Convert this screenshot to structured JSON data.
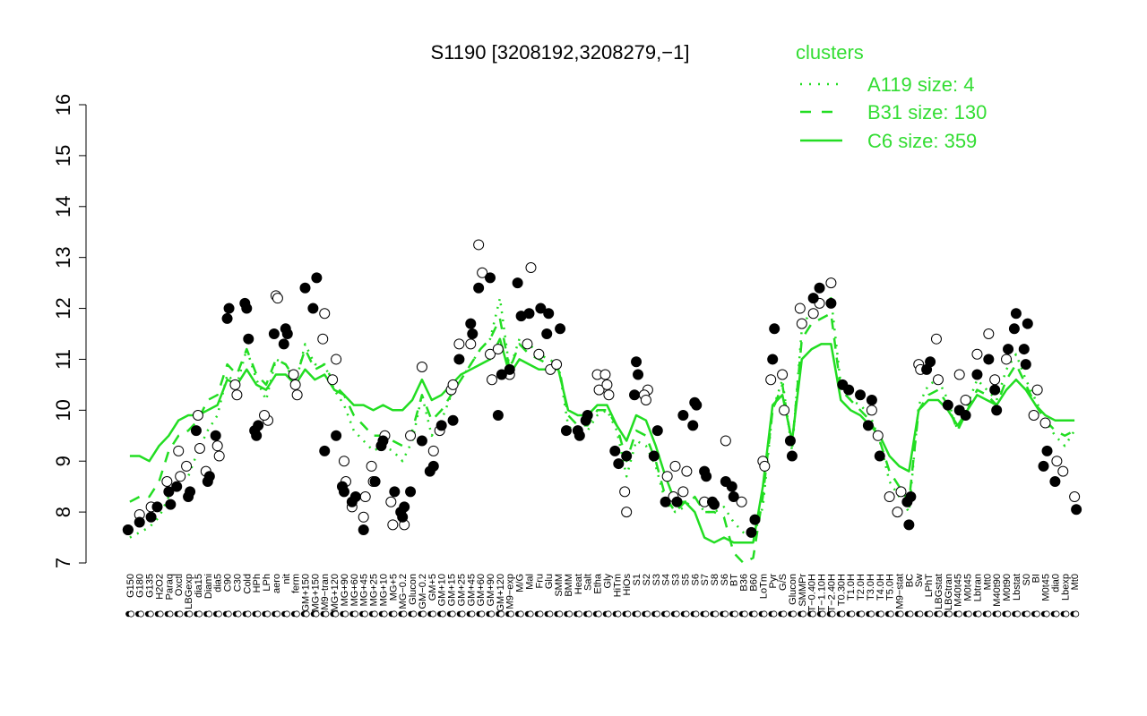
{
  "chart_data": {
    "type": "line",
    "title": "S1190 [3208192,3208279,−1]",
    "xlabel": "",
    "ylabel": "",
    "ylim": [
      7,
      16
    ],
    "yticks": [
      "7",
      "8",
      "9",
      "10",
      "11",
      "12",
      "13",
      "14",
      "15",
      "16"
    ],
    "grid": false,
    "legend_placement": "top-right",
    "legend": {
      "title": "clusters",
      "entries": [
        {
          "label": "A119 size: 4",
          "style": "dotted"
        },
        {
          "label": "B31 size: 130",
          "style": "dashed"
        },
        {
          "label": "C6 size: 359",
          "style": "solid"
        }
      ]
    },
    "colors": {
      "line": "#22dd22",
      "legend": "#33dd33",
      "axis": "#000000"
    },
    "x_labels": [
      "G150",
      "G180",
      "G135",
      "H2O2",
      "Paraq",
      "Oxctl",
      "LBGexp",
      "dia15",
      "Diami",
      "dia5",
      "C90",
      "C30",
      "Cold",
      "HPh",
      "LPh",
      "aero",
      "nit",
      "ferm",
      "GM+150",
      "MG+150",
      "M9−tran",
      "MG+120",
      "MG+90",
      "MG+60",
      "MG+45",
      "MG+25",
      "MG+10",
      "MG+5",
      "MG−0.2",
      "Glucon",
      "GM−0.2",
      "GM+5",
      "GM+10",
      "GM+15",
      "GM+25",
      "GM+45",
      "GM+60",
      "GM+90",
      "GM+120",
      "M9−exp",
      "M/G",
      "Mal",
      "Fru",
      "Glu",
      "SMM",
      "BMM",
      "Heat",
      "Salt",
      "Etha",
      "Gly",
      "HiTm",
      "HiOs",
      "S1",
      "S2",
      "S3",
      "S4",
      "S3",
      "S5",
      "S6",
      "S7",
      "S8",
      "S6",
      "BT",
      "B36",
      "B60",
      "LoTm",
      "Pyr",
      "G/S",
      "Glucon",
      "SMMPr",
      "T−0.40H",
      "T−1.10H",
      "T−2.40H",
      "T0.30H",
      "T1.0H",
      "T2.0H",
      "T3.0H",
      "T4.0H",
      "T5.0H",
      "M9−stat",
      "BC",
      "Sw",
      "LPhT",
      "LBGstat",
      "LBGtran",
      "M40t45",
      "M0t45",
      "Lbtran",
      "Mt0",
      "M40t90",
      "M0t90",
      "Lbstat",
      "S0",
      "BI",
      "M0t45",
      "dia0",
      "Lbexp",
      "Mt0"
    ],
    "series": [
      {
        "name": "A119 size: 4",
        "values": [
          7.5,
          7.6,
          7.7,
          7.9,
          8.3,
          8.6,
          8.7,
          9.2,
          9.6,
          9.9,
          10.7,
          10.5,
          11.2,
          10.6,
          10.2,
          11.0,
          10.9,
          10.5,
          11.3,
          10.9,
          10.9,
          10.4,
          10.1,
          9.6,
          9.4,
          9.2,
          9.3,
          9.2,
          9.0,
          9.4,
          10.3,
          9.5,
          9.8,
          10.3,
          10.6,
          10.9,
          11.2,
          11.4,
          12.2,
          10.8,
          11.4,
          11.3,
          11.1,
          11.0,
          10.9,
          9.7,
          9.5,
          9.6,
          9.9,
          10.0,
          9.6,
          8.7,
          9.4,
          9.3,
          8.9,
          8.2,
          8.0,
          8.1,
          8.3,
          8.0,
          8.0,
          8.1,
          7.8,
          7.6,
          7.5,
          8.1,
          10.0,
          10.6,
          9.2,
          11.6,
          12.0,
          12.1,
          12.2,
          10.5,
          10.2,
          10.1,
          9.9,
          9.4,
          8.6,
          8.3,
          8.0,
          10.1,
          10.5,
          10.6,
          10.2,
          9.6,
          10.1,
          10.6,
          10.4,
          10.2,
          10.8,
          11.1,
          10.6,
          10.2,
          9.8,
          9.5,
          9.3,
          9.6
        ]
      },
      {
        "name": "B31 size: 130",
        "values": [
          8.2,
          8.3,
          8.3,
          8.6,
          9.2,
          9.5,
          9.6,
          9.8,
          10.2,
          10.3,
          10.9,
          10.7,
          11.2,
          10.7,
          10.5,
          11.0,
          10.9,
          10.6,
          11.2,
          10.8,
          10.9,
          10.5,
          10.3,
          9.9,
          9.7,
          9.5,
          9.5,
          9.4,
          9.3,
          9.6,
          10.3,
          9.8,
          10.0,
          10.3,
          10.6,
          10.9,
          11.2,
          11.4,
          11.8,
          10.8,
          11.3,
          11.1,
          11.0,
          10.9,
          10.9,
          9.9,
          9.7,
          9.7,
          10.0,
          10.0,
          9.7,
          9.0,
          9.6,
          9.5,
          9.0,
          8.3,
          8.0,
          8.2,
          8.3,
          8.0,
          8.0,
          7.9,
          7.2,
          7.0,
          7.1,
          8.3,
          10.0,
          10.5,
          9.3,
          11.4,
          11.7,
          11.8,
          11.9,
          10.4,
          10.2,
          10.0,
          9.8,
          9.4,
          8.8,
          8.5,
          8.2,
          10.0,
          10.3,
          10.4,
          10.1,
          9.6,
          10.0,
          10.4,
          10.3,
          10.1,
          10.6,
          10.9,
          10.5,
          10.1,
          9.8,
          9.6,
          9.5,
          9.6
        ]
      },
      {
        "name": "C6 size: 359",
        "values": [
          9.1,
          9.1,
          9.0,
          9.3,
          9.5,
          9.8,
          9.9,
          9.9,
          10.0,
          10.1,
          10.6,
          10.5,
          10.8,
          10.5,
          10.4,
          10.7,
          10.7,
          10.5,
          10.8,
          10.6,
          10.7,
          10.4,
          10.3,
          10.1,
          10.1,
          10.0,
          10.1,
          10.0,
          10.0,
          10.2,
          10.6,
          10.2,
          10.3,
          10.5,
          10.7,
          10.8,
          10.9,
          11.0,
          11.4,
          10.7,
          11.0,
          10.9,
          10.8,
          10.8,
          10.8,
          10.0,
          9.9,
          9.9,
          10.1,
          10.1,
          9.7,
          9.4,
          9.9,
          9.8,
          9.3,
          8.7,
          8.2,
          8.2,
          8.0,
          7.5,
          7.4,
          7.5,
          7.4,
          7.4,
          7.4,
          8.5,
          10.1,
          10.3,
          9.4,
          11.0,
          11.2,
          11.3,
          11.3,
          10.2,
          10.0,
          9.9,
          9.7,
          9.5,
          9.1,
          8.9,
          8.8,
          10.0,
          10.2,
          10.2,
          10.0,
          9.7,
          10.0,
          10.3,
          10.2,
          10.1,
          10.4,
          10.6,
          10.4,
          10.1,
          9.9,
          9.8,
          9.8,
          9.8
        ]
      }
    ],
    "points": {
      "filled": [
        [
          0,
          7.65
        ],
        [
          1,
          7.8
        ],
        [
          2,
          7.9
        ],
        [
          3,
          8.1
        ],
        [
          4,
          8.4
        ],
        [
          4,
          8.15
        ],
        [
          5,
          8.5
        ],
        [
          6,
          8.3
        ],
        [
          6,
          8.4
        ],
        [
          7,
          9.6
        ],
        [
          8,
          8.6
        ],
        [
          8,
          8.7
        ],
        [
          9,
          9.5
        ],
        [
          10,
          11.8
        ],
        [
          10,
          12.0
        ],
        [
          12,
          12.1
        ],
        [
          12,
          12.0
        ],
        [
          12,
          11.4
        ],
        [
          13,
          9.6
        ],
        [
          13,
          9.5
        ],
        [
          13,
          9.7
        ],
        [
          15,
          11.5
        ],
        [
          16,
          11.6
        ],
        [
          16,
          11.5
        ],
        [
          16,
          11.3
        ],
        [
          18,
          12.4
        ],
        [
          19,
          12.6
        ],
        [
          19,
          12.0
        ],
        [
          20,
          9.2
        ],
        [
          21,
          9.5
        ],
        [
          22,
          8.5
        ],
        [
          22,
          8.4
        ],
        [
          23,
          8.3
        ],
        [
          23,
          8.2
        ],
        [
          24,
          7.65
        ],
        [
          25,
          8.6
        ],
        [
          26,
          9.3
        ],
        [
          26,
          9.4
        ],
        [
          27,
          8.4
        ],
        [
          28,
          8.0
        ],
        [
          28,
          7.9
        ],
        [
          28,
          8.1
        ],
        [
          29,
          8.4
        ],
        [
          30,
          9.4
        ],
        [
          31,
          8.9
        ],
        [
          31,
          8.8
        ],
        [
          32,
          9.7
        ],
        [
          33,
          9.8
        ],
        [
          34,
          11.0
        ],
        [
          35,
          11.7
        ],
        [
          35,
          11.5
        ],
        [
          36,
          12.4
        ],
        [
          37,
          12.6
        ],
        [
          38,
          10.7
        ],
        [
          38,
          9.9
        ],
        [
          39,
          10.8
        ],
        [
          40,
          11.85
        ],
        [
          40,
          12.5
        ],
        [
          41,
          11.9
        ],
        [
          42,
          12.0
        ],
        [
          43,
          11.5
        ],
        [
          43,
          11.9
        ],
        [
          44,
          11.6
        ],
        [
          45,
          9.6
        ],
        [
          46,
          9.6
        ],
        [
          46,
          9.5
        ],
        [
          47,
          9.8
        ],
        [
          47,
          9.9
        ],
        [
          50,
          8.95
        ],
        [
          50,
          9.2
        ],
        [
          51,
          9.1
        ],
        [
          52,
          10.7
        ],
        [
          52,
          10.3
        ],
        [
          52,
          10.95
        ],
        [
          54,
          9.6
        ],
        [
          54,
          9.1
        ],
        [
          55,
          8.2
        ],
        [
          56,
          8.2
        ],
        [
          57,
          9.9
        ],
        [
          58,
          10.15
        ],
        [
          58,
          10.1
        ],
        [
          58,
          9.7
        ],
        [
          59,
          8.8
        ],
        [
          59,
          8.7
        ],
        [
          60,
          8.2
        ],
        [
          60,
          8.15
        ],
        [
          61,
          8.6
        ],
        [
          62,
          8.5
        ],
        [
          62,
          8.3
        ],
        [
          64,
          7.85
        ],
        [
          64,
          7.6
        ],
        [
          66,
          11.0
        ],
        [
          66,
          11.6
        ],
        [
          68,
          9.4
        ],
        [
          68,
          9.1
        ],
        [
          70,
          12.2
        ],
        [
          71,
          12.4
        ],
        [
          72,
          12.1
        ],
        [
          73,
          10.5
        ],
        [
          74,
          10.4
        ],
        [
          75,
          10.3
        ],
        [
          76,
          10.2
        ],
        [
          76,
          9.7
        ],
        [
          77,
          9.1
        ],
        [
          80,
          8.3
        ],
        [
          80,
          8.2
        ],
        [
          80,
          7.75
        ],
        [
          82,
          10.95
        ],
        [
          82,
          10.8
        ],
        [
          84,
          10.1
        ],
        [
          85,
          10.0
        ],
        [
          86,
          9.9
        ],
        [
          87,
          10.7
        ],
        [
          88,
          11.0
        ],
        [
          89,
          10.4
        ],
        [
          89,
          10.0
        ],
        [
          90,
          11.2
        ],
        [
          91,
          11.6
        ],
        [
          91,
          11.9
        ],
        [
          92,
          11.7
        ],
        [
          92,
          11.2
        ],
        [
          92,
          10.9
        ],
        [
          94,
          9.2
        ],
        [
          94,
          8.9
        ],
        [
          95,
          8.6
        ],
        [
          97,
          8.05
        ]
      ],
      "open": [
        [
          0,
          7.65
        ],
        [
          1,
          7.95
        ],
        [
          2,
          8.1
        ],
        [
          4,
          8.6
        ],
        [
          5,
          9.2
        ],
        [
          5,
          8.7
        ],
        [
          6,
          8.9
        ],
        [
          7,
          9.9
        ],
        [
          7,
          9.25
        ],
        [
          8,
          8.8
        ],
        [
          9,
          9.3
        ],
        [
          9,
          9.1
        ],
        [
          11,
          10.5
        ],
        [
          11,
          10.3
        ],
        [
          14,
          9.8
        ],
        [
          14,
          9.9
        ],
        [
          15,
          12.25
        ],
        [
          15,
          12.2
        ],
        [
          17,
          10.7
        ],
        [
          17,
          10.5
        ],
        [
          17,
          10.3
        ],
        [
          20,
          11.4
        ],
        [
          20,
          11.9
        ],
        [
          21,
          11.0
        ],
        [
          21,
          10.6
        ],
        [
          22,
          9.0
        ],
        [
          22,
          8.6
        ],
        [
          23,
          8.1
        ],
        [
          24,
          7.9
        ],
        [
          24,
          8.3
        ],
        [
          25,
          8.9
        ],
        [
          25,
          8.6
        ],
        [
          26,
          9.5
        ],
        [
          27,
          8.2
        ],
        [
          27,
          7.75
        ],
        [
          28,
          7.75
        ],
        [
          29,
          9.5
        ],
        [
          30,
          10.85
        ],
        [
          31,
          9.2
        ],
        [
          32,
          9.6
        ],
        [
          33,
          10.4
        ],
        [
          33,
          10.5
        ],
        [
          34,
          11.3
        ],
        [
          35,
          11.3
        ],
        [
          36,
          12.7
        ],
        [
          36,
          13.25
        ],
        [
          37,
          11.1
        ],
        [
          37,
          10.6
        ],
        [
          38,
          11.2
        ],
        [
          39,
          10.7
        ],
        [
          41,
          12.8
        ],
        [
          41,
          11.3
        ],
        [
          42,
          11.1
        ],
        [
          43,
          10.8
        ],
        [
          44,
          10.9
        ],
        [
          48,
          10.7
        ],
        [
          48,
          10.4
        ],
        [
          49,
          10.7
        ],
        [
          49,
          10.5
        ],
        [
          49,
          10.3
        ],
        [
          51,
          8.4
        ],
        [
          51,
          8.0
        ],
        [
          53,
          10.4
        ],
        [
          53,
          10.3
        ],
        [
          53,
          10.2
        ],
        [
          55,
          8.7
        ],
        [
          56,
          8.3
        ],
        [
          56,
          8.9
        ],
        [
          57,
          8.8
        ],
        [
          57,
          8.4
        ],
        [
          59,
          8.2
        ],
        [
          61,
          9.4
        ],
        [
          63,
          8.2
        ],
        [
          65,
          9.0
        ],
        [
          65,
          8.9
        ],
        [
          66,
          10.6
        ],
        [
          67,
          10.7
        ],
        [
          67,
          10.0
        ],
        [
          69,
          12.0
        ],
        [
          69,
          11.7
        ],
        [
          70,
          11.9
        ],
        [
          71,
          12.1
        ],
        [
          72,
          12.5
        ],
        [
          76,
          10.0
        ],
        [
          77,
          9.5
        ],
        [
          78,
          8.3
        ],
        [
          79,
          8.4
        ],
        [
          79,
          8.0
        ],
        [
          81,
          10.9
        ],
        [
          81,
          10.8
        ],
        [
          83,
          11.4
        ],
        [
          83,
          10.6
        ],
        [
          85,
          10.7
        ],
        [
          86,
          10.2
        ],
        [
          87,
          11.1
        ],
        [
          88,
          11.5
        ],
        [
          89,
          10.6
        ],
        [
          90,
          11.0
        ],
        [
          93,
          10.4
        ],
        [
          93,
          9.9
        ],
        [
          94,
          9.75
        ],
        [
          95,
          9.0
        ],
        [
          96,
          8.8
        ],
        [
          97,
          8.3
        ]
      ]
    }
  }
}
